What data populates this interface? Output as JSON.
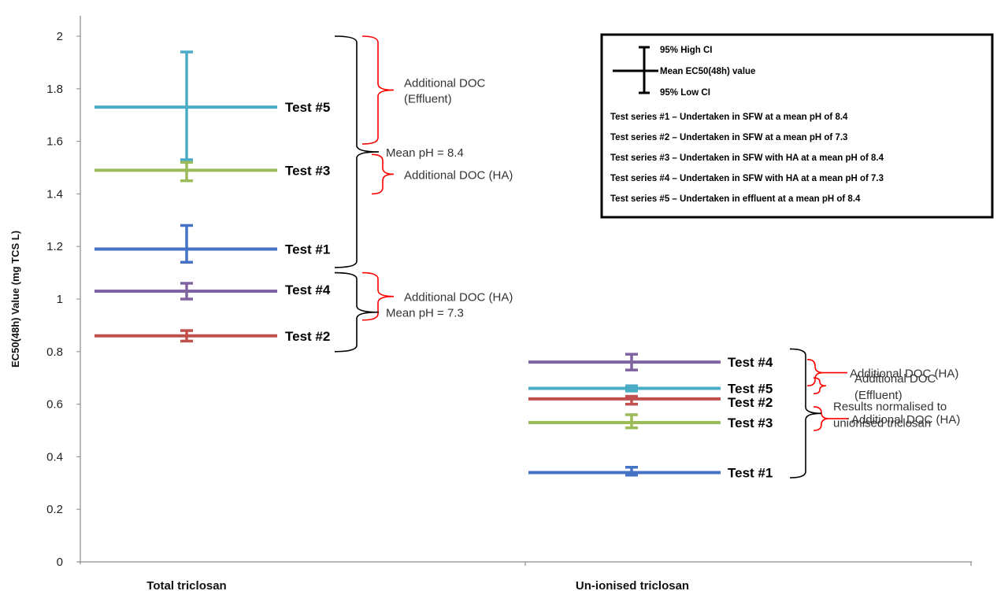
{
  "chart_data": {
    "type": "errorbar",
    "ylabel": "EC50(48h) Value (mg TCS L)",
    "ylim": [
      0,
      2
    ],
    "yticks": [
      "0",
      "0.2",
      "0.4",
      "0.6",
      "0.8",
      "1",
      "1.2",
      "1.4",
      "1.6",
      "1.8",
      "2"
    ],
    "categories": [
      "Total triclosan",
      "Un-ionised triclosan"
    ],
    "colors": {
      "Test #1": "#4472c4",
      "Test #2": "#c0504d",
      "Test #3": "#9bbb59",
      "Test #4": "#8064a2",
      "Test #5": "#4bacc6",
      "bracket_red": "#ff0000",
      "bracket_black": "#000000"
    },
    "groups": [
      {
        "category": "Total triclosan",
        "points": [
          {
            "label": "Test #5",
            "mean": 1.73,
            "ci_low": 1.53,
            "ci_high": 1.94
          },
          {
            "label": "Test #3",
            "mean": 1.49,
            "ci_low": 1.45,
            "ci_high": 1.52
          },
          {
            "label": "Test #1",
            "mean": 1.19,
            "ci_low": 1.14,
            "ci_high": 1.28
          },
          {
            "label": "Test #4",
            "mean": 1.03,
            "ci_low": 1.0,
            "ci_high": 1.06
          },
          {
            "label": "Test #2",
            "mean": 0.86,
            "ci_low": 0.84,
            "ci_high": 0.88
          }
        ],
        "annotations": [
          {
            "text": "Additional DOC",
            "text2": "(Effluent)",
            "color": "red",
            "from": 1.59,
            "to": 2.0
          },
          {
            "text": "Additional DOC (HA)",
            "color": "red",
            "from": 1.4,
            "to": 1.55
          },
          {
            "text": "Mean pH = 8.4",
            "color": "black",
            "from": 1.12,
            "to": 2.0
          },
          {
            "text": "Additional DOC (HA)",
            "color": "red",
            "from": 0.92,
            "to": 1.1
          },
          {
            "text": "Mean pH = 7.3",
            "color": "black",
            "from": 0.8,
            "to": 1.1
          }
        ]
      },
      {
        "category": "Un-ionised triclosan",
        "points": [
          {
            "label": "Test #4",
            "mean": 0.76,
            "ci_low": 0.73,
            "ci_high": 0.79
          },
          {
            "label": "Test #5",
            "mean": 0.66,
            "ci_low": 0.65,
            "ci_high": 0.67
          },
          {
            "label": "Test #2",
            "mean": 0.62,
            "ci_low": 0.6,
            "ci_high": 0.63
          },
          {
            "label": "Test #3",
            "mean": 0.53,
            "ci_low": 0.51,
            "ci_high": 0.56
          },
          {
            "label": "Test #1",
            "mean": 0.34,
            "ci_low": 0.33,
            "ci_high": 0.36
          }
        ],
        "annotations": [
          {
            "text": "Additional DOC (HA)",
            "color": "red",
            "from": 0.67,
            "to": 0.77
          },
          {
            "text": "Additional DOC",
            "text2": "(Effluent)",
            "color": "red",
            "from": 0.64,
            "to": 0.7
          },
          {
            "text": "Additional DOC (HA)",
            "color": "red",
            "from": 0.5,
            "to": 0.59
          },
          {
            "text": "Results normalised to",
            "text2": "unionised triclosan",
            "color": "black",
            "from": 0.32,
            "to": 0.81
          }
        ]
      }
    ],
    "legend": {
      "placement": "top-right",
      "symbol_labels": [
        "95% High CI",
        "Mean EC50(48h) value",
        "95% Low CI"
      ],
      "series": [
        "Test series #1 – Undertaken in SFW at a mean pH of 8.4",
        "Test series #2 – Undertaken in SFW at a mean pH of 7.3",
        "Test series #3 – Undertaken in SFW with HA at a mean pH of 8.4",
        "Test series #4 – Undertaken in SFW with HA at a mean pH of 7.3",
        "Test series #5 – Undertaken in effluent at a mean pH of 8.4"
      ]
    }
  }
}
